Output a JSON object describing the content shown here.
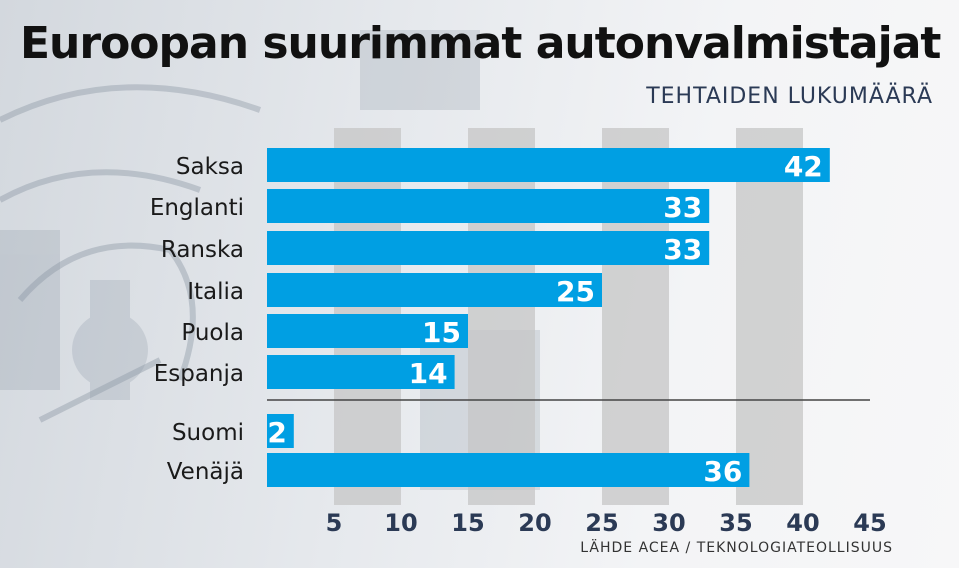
{
  "title": "Euroopan suurimmat autonvalmistajat",
  "subtitle": "TEHTAIDEN LUKUMÄÄRÄ",
  "source": "LÄHDE ACEA / TEKNOLOGIATEOLLISUUS",
  "colors": {
    "bar": "#009fe3",
    "bar_light": "#29b6f0",
    "band": "#c5c5c5",
    "tick_text": "#2b3a55",
    "divider": "#444444"
  },
  "chart_data": {
    "type": "bar",
    "orientation": "horizontal",
    "title": "Euroopan suurimmat autonvalmistajat",
    "subtitle": "TEHTAIDEN LUKUMÄÄRÄ",
    "categories": [
      "Saksa",
      "Englanti",
      "Ranska",
      "Italia",
      "Puola",
      "Espanja",
      "Suomi",
      "Venäjä"
    ],
    "values": [
      42,
      33,
      33,
      25,
      15,
      14,
      2,
      36
    ],
    "groups": [
      {
        "categories": [
          "Saksa",
          "Englanti",
          "Ranska",
          "Italia",
          "Puola",
          "Espanja"
        ]
      },
      {
        "categories": [
          "Suomi",
          "Venäjä"
        ]
      }
    ],
    "xlim": [
      0,
      45
    ],
    "xticks": [
      5,
      10,
      15,
      20,
      25,
      30,
      35,
      40,
      45
    ],
    "xlabel": "",
    "ylabel": "",
    "grid": "alternating vertical bands"
  }
}
